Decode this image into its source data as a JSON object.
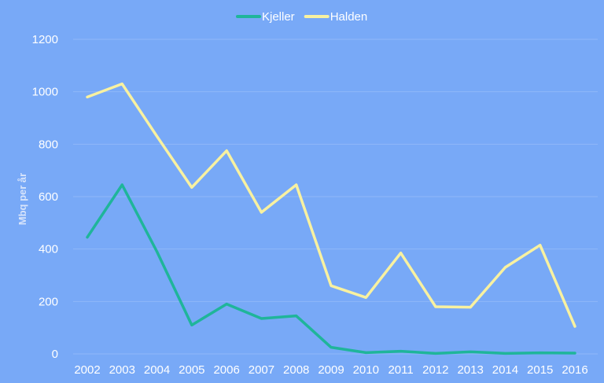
{
  "chart_data": {
    "type": "line",
    "x": [
      "2002",
      "2003",
      "2004",
      "2005",
      "2006",
      "2007",
      "2008",
      "2009",
      "2010",
      "2011",
      "2012",
      "2013",
      "2014",
      "2015",
      "2016"
    ],
    "series": [
      {
        "name": "Kjeller",
        "color": "#1fb59a",
        "values": [
          445,
          645,
          390,
          110,
          190,
          135,
          145,
          25,
          5,
          10,
          2,
          8,
          2,
          4,
          3
        ]
      },
      {
        "name": "Halden",
        "color": "#f8f1a0",
        "values": [
          980,
          1030,
          830,
          635,
          775,
          540,
          645,
          260,
          215,
          385,
          180,
          178,
          330,
          415,
          105
        ]
      }
    ],
    "ylabel": "Mbq per år",
    "xlabel": "",
    "ylim": [
      0,
      1200
    ],
    "yticks": [
      0,
      200,
      400,
      600,
      800,
      1000,
      1200
    ],
    "grid": true,
    "legend_position": "top-center",
    "background": "#78a9f7"
  }
}
